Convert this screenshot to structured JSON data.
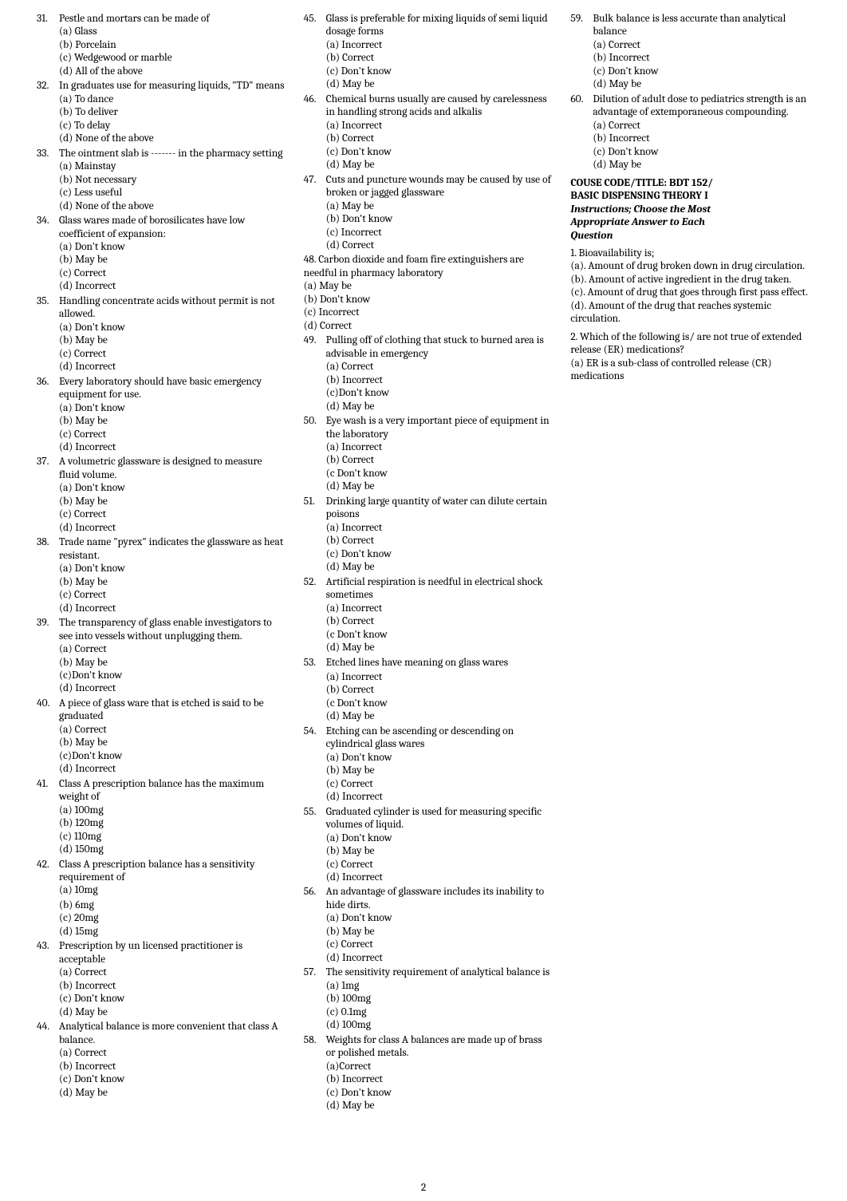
{
  "page_number": "2",
  "section": {
    "title_line1": "COUSE CODE/TITLE: BDT 152/",
    "title_line2": "BASIC DISPENSING THEORY I",
    "instructions_line1": "Instructions; Choose the Most",
    "instructions_line2": "Appropriate Answer to Each",
    "instructions_line3": "Question"
  },
  "questions": [
    {
      "num": "31.",
      "stem": "Pestle and mortars can be made of",
      "options": [
        "(a) Glass",
        "(b) Porcelain",
        "(c) Wedgewood or marble",
        "(d) All of the above"
      ]
    },
    {
      "num": "32.",
      "stem": "In graduates use for measuring liquids, \"TD\" means",
      "options": [
        "(a) To dance",
        "(b) To deliver",
        "(c) To delay",
        "(d) None of the above"
      ]
    },
    {
      "num": "33.",
      "stem": "The ointment slab is ------- in the pharmacy setting",
      "options": [
        "(a) Mainstay",
        "(b) Not necessary",
        "(c) Less useful",
        "(d) None of the above"
      ]
    },
    {
      "num": "34.",
      "stem": "Glass wares made of borosilicates have low coefficient of expansion:",
      "options": [
        "(a) Don't know",
        "(b) May be",
        "(c) Correct",
        "(d) Incorrect"
      ]
    },
    {
      "num": "35.",
      "stem": "Handling concentrate acids without permit is not allowed.",
      "options": [
        "(a) Don't know",
        "(b) May be",
        "(c) Correct",
        "(d) Incorrect"
      ]
    },
    {
      "num": "36.",
      "stem": "Every laboratory should have basic emergency equipment for use.",
      "options": [
        "(a) Don't know",
        "(b) May be",
        "(c) Correct",
        "(d) Incorrect"
      ]
    },
    {
      "num": "37.",
      "stem": "A  volumetric glassware is designed to measure fluid volume.",
      "options": [
        "(a) Don't know",
        "(b) May be",
        "(c) Correct",
        "(d) Incorrect"
      ]
    },
    {
      "num": "38.",
      "stem": "Trade name \"pyrex\" indicates the glassware as heat resistant.",
      "options": [
        "(a) Don't know",
        "(b) May be",
        "(c) Correct",
        "(d) Incorrect"
      ]
    },
    {
      "num": "39.",
      "stem": "The transparency of glass enable investigators to see into vessels without unplugging them.",
      "options": [
        "(a) Correct",
        "(b) May be",
        "(c)Don't know",
        "(d) Incorrect"
      ]
    },
    {
      "num": "40.",
      "stem": "A piece of glass ware that is etched is said to be graduated",
      "options": [
        "(a) Correct",
        "(b) May be",
        "(c)Don't know",
        "(d) Incorrect"
      ]
    },
    {
      "num": "41.",
      "stem": "Class A prescription balance has the maximum weight of",
      "options": [
        "(a) 100mg",
        "(b) 120mg",
        "(c) 110mg",
        "(d) 150mg"
      ]
    },
    {
      "num": "42.",
      "stem": "Class A prescription balance has a sensitivity requirement of",
      "options": [
        "(a) 10mg",
        "(b) 6mg",
        "(c) 20mg",
        "(d) 15mg"
      ]
    },
    {
      "num": "43.",
      "stem": "Prescription by un licensed practitioner is acceptable",
      "options": [
        "(a) Correct",
        "(b) Incorrect",
        "(c) Don't know",
        "(d) May be"
      ]
    },
    {
      "num": "44.",
      "stem": "Analytical balance is more convenient that class A balance.",
      "options": [
        "(a) Correct",
        "(b) Incorrect",
        "(c) Don't know",
        "(d) May be"
      ]
    },
    {
      "num": "45.",
      "stem": "Glass is preferable for mixing liquids of semi liquid dosage forms",
      "options": [
        "(a) Incorrect",
        "(b) Correct",
        "(c) Don't know",
        "(d) May be"
      ]
    },
    {
      "num": "46.",
      "stem": "Chemical burns usually are caused by carelessness in handling strong acids and alkalis",
      "options": [
        "(a) Incorrect",
        "(b) Correct",
        "(c) Don't know",
        "(d) May be"
      ]
    },
    {
      "num": "47.",
      "stem": "Cuts and puncture wounds may be caused by use of broken or jagged glassware",
      "options": [
        "(a) May be",
        "(b) Don't know",
        "(c) Incorrect",
        "(d) Correct"
      ]
    },
    {
      "num": "48.",
      "prefix": "48. ",
      "stem": "Carbon dioxide and foam fire extinguishers are needful in pharmacy laboratory",
      "options": [
        "(a) May be",
        "(b) Don't know",
        "(c) Incorrect",
        "(d) Correct"
      ]
    },
    {
      "num": "49.",
      "stem": "Pulling off of clothing that stuck to burned area is  advisable in emergency",
      "options": [
        "(a) Correct",
        "(b) Incorrect",
        "(c)Don't know",
        "(d) May be"
      ]
    },
    {
      "num": "50.",
      "stem": "Eye wash is a very important piece of equipment in the laboratory",
      "options": [
        "(a) Incorrect",
        "(b) Correct",
        "(c Don't know",
        "(d) May be"
      ]
    },
    {
      "num": "51.",
      "stem": "Drinking large quantity of water can dilute certain poisons",
      "options": [
        "(a) Incorrect",
        "(b) Correct",
        "(c) Don't know",
        "(d) May be"
      ]
    },
    {
      "num": "52.",
      "stem": "Artificial respiration is needful in electrical shock sometimes",
      "options": [
        "(a) Incorrect",
        "(b) Correct",
        "(c Don't know",
        "(d) May be"
      ]
    },
    {
      "num": "53.",
      "stem": "Etched lines have meaning on glass wares",
      "options": [
        "(a) Incorrect",
        "(b) Correct",
        "(c Don't know",
        "(d) May be"
      ]
    },
    {
      "num": "54.",
      "stem": "Etching can be ascending or descending on cylindrical glass wares",
      "options": [
        "(a) Don't know",
        "(b) May be",
        "(c) Correct",
        "(d) Incorrect"
      ]
    },
    {
      "num": "55.",
      "stem": "Graduated cylinder is used for measuring specific volumes of liquid.",
      "options": [
        "(a) Don't know",
        "(b) May be",
        "(c) Correct",
        "(d) Incorrect"
      ]
    },
    {
      "num": "56.",
      "stem": "An advantage of glassware includes its inability to hide dirts.",
      "options": [
        "(a) Don't know",
        "(b) May be",
        "(c) Correct",
        "(d) Incorrect"
      ]
    },
    {
      "num": "57.",
      "stem": "The sensitivity requirement of analytical balance is",
      "options": [
        "(a) 1mg",
        "(b) 100mg",
        "(c) 0.1mg",
        "(d) 100mg"
      ]
    },
    {
      "num": "58.",
      "stem": "Weights for class A balances are made up of brass or polished metals.",
      "options": [
        "(a)Correct",
        "(b) Incorrect",
        "(c) Don't know",
        "(d) May be"
      ]
    },
    {
      "num": "59.",
      "stem": "Bulk balance is less accurate than analytical balance",
      "options": [
        "(a) Correct",
        "(b) Incorrect",
        "(c) Don't know",
        "(d) May be"
      ]
    },
    {
      "num": "60.",
      "stem": "Dilution of adult dose to pediatrics strength is an advantage of extemporaneous compounding.",
      "options": [
        "(a) Correct",
        "(b) Incorrect",
        "(c) Don't know",
        "(d) May be"
      ]
    }
  ],
  "extra_questions": [
    {
      "num": "1.",
      "stem": "Bioavailability is;",
      "options": [
        "(a). Amount of drug broken down in drug circulation.",
        "(b). Amount of active ingredient in the drug taken.",
        "(c). Amount of drug that goes through first pass effect.",
        "(d). Amount of the drug that reaches systemic circulation."
      ]
    },
    {
      "num": "2.",
      "stem": "Which of the following is/ are not true of extended release (ER) medications?",
      "options": [
        "(a) ER is a sub-class of controlled release (CR) medications"
      ]
    }
  ]
}
